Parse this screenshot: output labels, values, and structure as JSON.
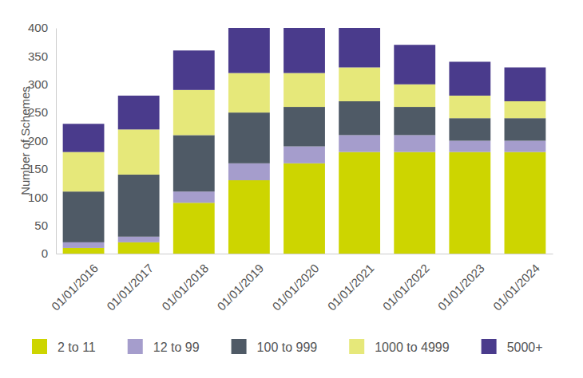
{
  "chart_data": {
    "type": "bar",
    "stacked": true,
    "y_label": "Number of Schemes",
    "categories": [
      "01/01/2016",
      "01/01/2017",
      "01/01/2018",
      "01/01/2019",
      "01/01/2020",
      "01/01/2021",
      "01/01/2022",
      "01/01/2023",
      "01/01/2024"
    ],
    "series": [
      {
        "name": "2 to 11",
        "color": "#cdd500",
        "values": [
          10,
          20,
          90,
          130,
          160,
          180,
          180,
          180,
          180
        ]
      },
      {
        "name": "12 to 99",
        "color": "#a59dcc",
        "values": [
          10,
          10,
          20,
          30,
          30,
          30,
          30,
          20,
          20
        ]
      },
      {
        "name": "100 to 999",
        "color": "#4f5a66",
        "values": [
          90,
          110,
          100,
          90,
          70,
          60,
          50,
          40,
          40
        ]
      },
      {
        "name": "1000 to 4999",
        "color": "#e6e87a",
        "values": [
          70,
          80,
          80,
          70,
          60,
          60,
          40,
          40,
          30
        ]
      },
      {
        "name": "5000+",
        "color": "#4a3b8c",
        "values": [
          50,
          60,
          70,
          80,
          80,
          70,
          70,
          60,
          60
        ]
      }
    ],
    "ylim": [
      0,
      400
    ],
    "yticks": [
      0,
      50,
      100,
      150,
      200,
      250,
      300,
      350,
      400
    ],
    "grid": false,
    "legend": "bottom"
  }
}
